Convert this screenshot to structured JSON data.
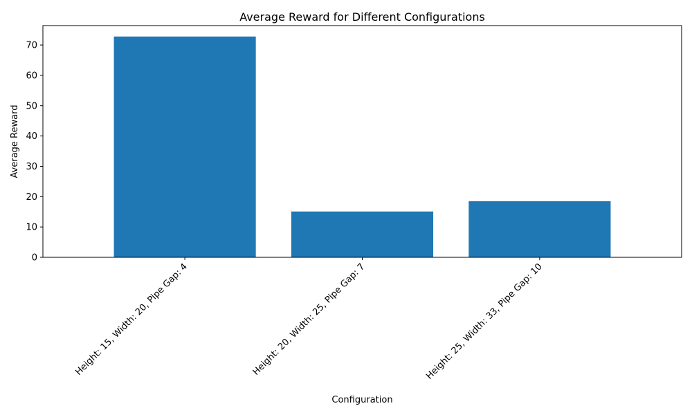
{
  "chart_data": {
    "type": "bar",
    "title": "Average Reward for Different Configurations",
    "xlabel": "Configuration",
    "ylabel": "Average Reward",
    "categories": [
      "Height: 15, Width: 20, Pipe Gap: 4",
      "Height: 20, Width: 25, Pipe Gap: 7",
      "Height: 25, Width: 33, Pipe Gap: 10"
    ],
    "values": [
      72.8,
      15.1,
      18.5
    ],
    "ylim": [
      0,
      76.4
    ],
    "yticks": [
      0,
      10,
      20,
      30,
      40,
      50,
      60,
      70
    ],
    "bar_color": "#1f77b4",
    "grid": false,
    "legend": "none"
  }
}
